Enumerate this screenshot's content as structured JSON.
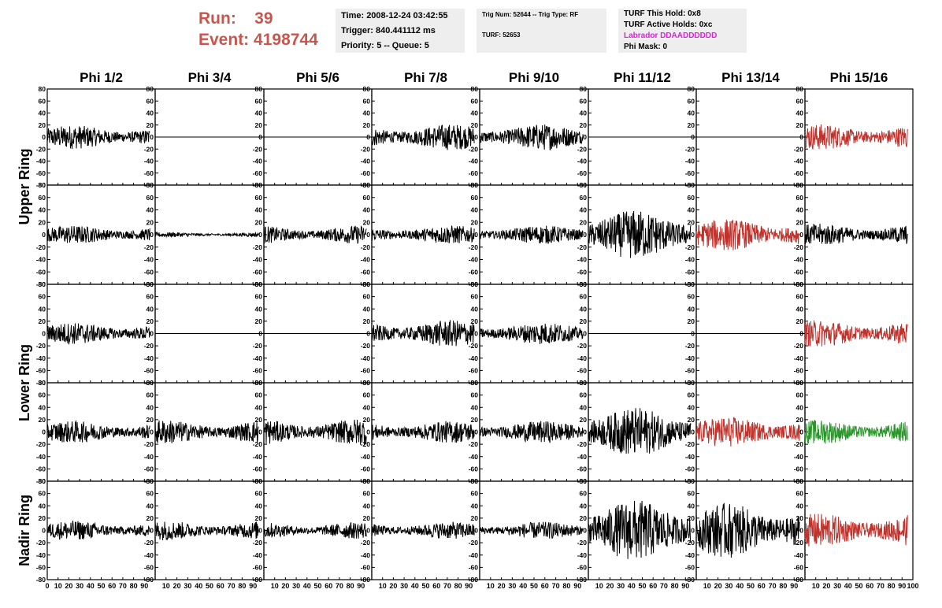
{
  "header": {
    "run_label": "Run:",
    "run_value": "39",
    "event_label": "Event:",
    "event_value": "4198744",
    "time_line": "Time: 2008-12-24 03:42:55",
    "trigger_line": "Trigger: 840.441112 ms",
    "priority_line": "Priority: 5 -- Queue: 5",
    "trig_num_line": "Trig Num: 52644 -- Trig Type: RF",
    "turf_line": "TURF: 52653",
    "turf_hold_line": "TURF This Hold: 0x8",
    "turf_active_line": "TURF Active Holds: 0xc",
    "labrador_line": "Labrador DDAADDDDDD",
    "phi_mask_line": "Phi Mask: 0"
  },
  "chart_data": {
    "type": "line",
    "title": "",
    "columns": [
      "Phi 1/2",
      "Phi 3/4",
      "Phi 5/6",
      "Phi 7/8",
      "Phi 9/10",
      "Phi 11/12",
      "Phi 13/14",
      "Phi 15/16"
    ],
    "ring_labels": [
      "Upper Ring",
      "Lower Ring",
      "Nadir Ring"
    ],
    "xlim": [
      0,
      100
    ],
    "ylim": [
      -80,
      80
    ],
    "x_ticks": [
      "0",
      "10",
      "20",
      "30",
      "40",
      "50",
      "60",
      "70",
      "80",
      "90",
      "100"
    ],
    "y_ticks": [
      "80",
      "60",
      "40",
      "20",
      "0",
      "-20",
      "-40",
      "-60",
      "-80"
    ],
    "colors": {
      "normal": "#000000",
      "red": "#c0322c",
      "green": "#2a962a",
      "magenta": "#e020e0",
      "run_text": "#c8564c"
    },
    "traces": [
      [
        "normal",
        "flat",
        "flat",
        "normal",
        "normal",
        "flat",
        "flat",
        "red"
      ],
      [
        "normal",
        "quiet",
        "normal",
        "normal",
        "normal",
        "large",
        "red",
        "normal"
      ],
      [
        "normal",
        "flat",
        "flat",
        "normal",
        "normal",
        "flat",
        "flat",
        "red"
      ],
      [
        "normal",
        "normal",
        "normal",
        "normal",
        "normal",
        "large",
        "red",
        "green"
      ],
      [
        "normal",
        "normal",
        "normal",
        "normal",
        "normal",
        "large",
        "large",
        "red"
      ]
    ],
    "amplitudes": [
      [
        20,
        0,
        0,
        22,
        22,
        0,
        0,
        22
      ],
      [
        15,
        4,
        15,
        15,
        15,
        40,
        26,
        18
      ],
      [
        18,
        0,
        0,
        22,
        18,
        0,
        0,
        22
      ],
      [
        18,
        20,
        22,
        18,
        18,
        40,
        25,
        20
      ],
      [
        16,
        16,
        14,
        14,
        14,
        50,
        45,
        28
      ]
    ]
  }
}
